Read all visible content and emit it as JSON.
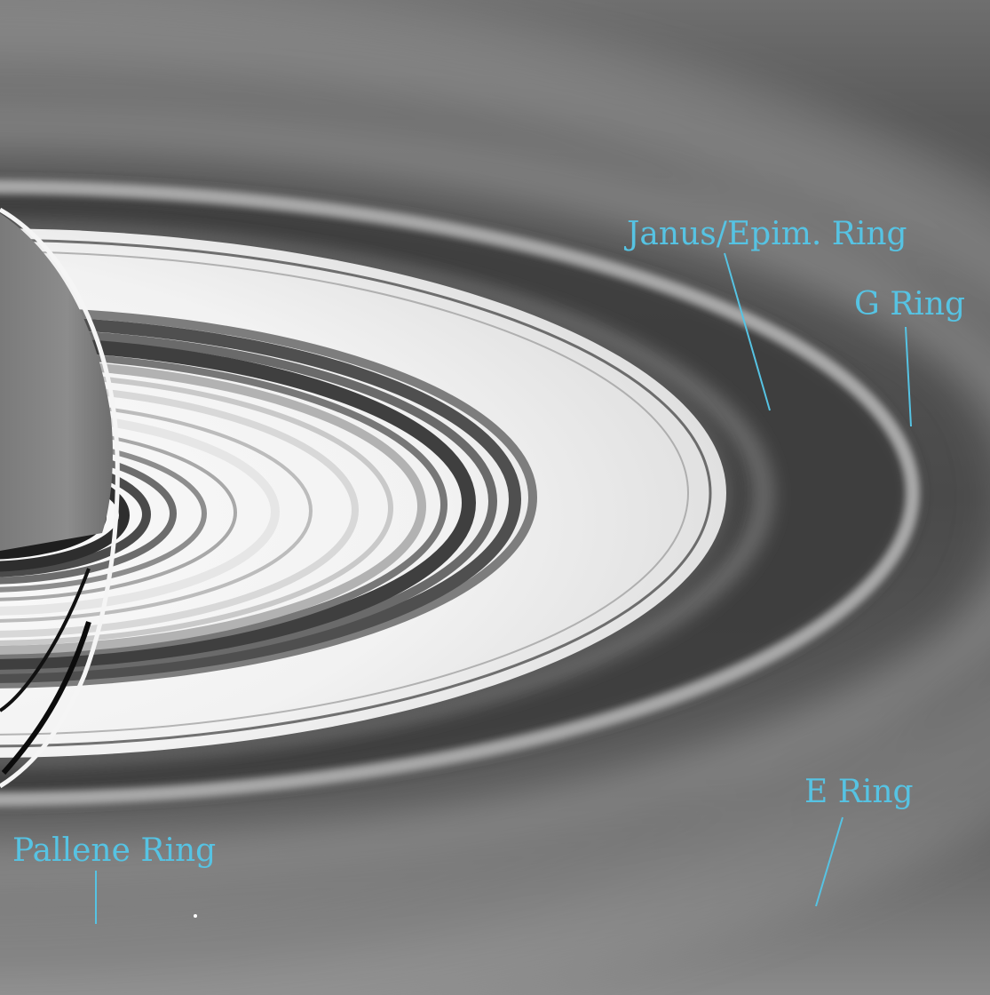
{
  "image": {
    "subject": "Saturn rings",
    "label_color": "#56c3e3"
  },
  "labels": {
    "janus_epim": "Janus/Epim. Ring",
    "g_ring": "G Ring",
    "e_ring": "E Ring",
    "pallene": "Pallene Ring"
  }
}
